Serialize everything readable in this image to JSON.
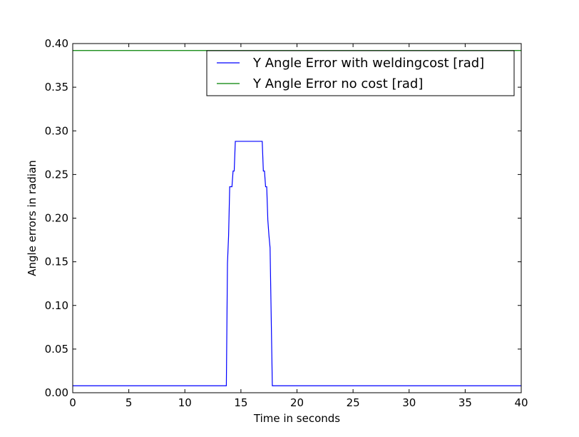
{
  "chart_data": {
    "type": "line",
    "title": "",
    "xlabel": "Time in seconds",
    "ylabel": "Angle errors in radian",
    "xlim": [
      0,
      40
    ],
    "ylim": [
      0,
      0.4
    ],
    "xticks": [
      0,
      5,
      10,
      15,
      20,
      25,
      30,
      35,
      40
    ],
    "xtick_labels": [
      "0",
      "5",
      "10",
      "15",
      "20",
      "25",
      "30",
      "35",
      "40"
    ],
    "yticks": [
      0,
      0.05,
      0.1,
      0.15,
      0.2,
      0.25,
      0.3,
      0.35,
      0.4
    ],
    "ytick_labels": [
      "0.00",
      "0.05",
      "0.10",
      "0.15",
      "0.20",
      "0.25",
      "0.30",
      "0.35",
      "0.40"
    ],
    "grid": false,
    "legend_position": "top-right",
    "series": [
      {
        "name": "Y Angle Error with weldingcost [rad]",
        "color": "#0000ff",
        "x": [
          0,
          13.7,
          13.8,
          13.9,
          14.0,
          14.1,
          14.2,
          14.3,
          14.4,
          14.5,
          16.9,
          17.0,
          17.1,
          17.2,
          17.3,
          17.4,
          17.5,
          17.6,
          17.8,
          40
        ],
        "y": [
          0.008,
          0.008,
          0.148,
          0.18,
          0.236,
          0.236,
          0.236,
          0.254,
          0.254,
          0.288,
          0.288,
          0.254,
          0.254,
          0.236,
          0.236,
          0.198,
          0.18,
          0.166,
          0.008,
          0.008
        ]
      },
      {
        "name": "Y Angle Error no cost [rad]",
        "color": "#008000",
        "x": [
          0,
          40
        ],
        "y": [
          0.392,
          0.392
        ]
      }
    ]
  }
}
